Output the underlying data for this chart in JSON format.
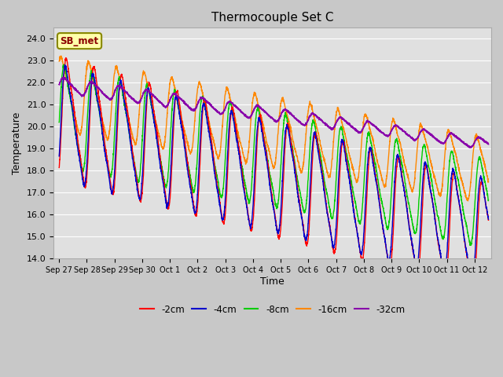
{
  "title": "Thermocouple Set C",
  "xlabel": "Time",
  "ylabel": "Temperature",
  "ylim": [
    14.0,
    24.5
  ],
  "yticks": [
    14.0,
    15.0,
    16.0,
    17.0,
    18.0,
    19.0,
    20.0,
    21.0,
    22.0,
    23.0,
    24.0
  ],
  "fig_bg_color": "#c8c8c8",
  "plot_bg_color": "#e0e0e0",
  "annotation_text": "SB_met",
  "annotation_bg": "#ffffaa",
  "annotation_border": "#888800",
  "series_colors": {
    "-2cm": "#ff0000",
    "-4cm": "#0000cc",
    "-8cm": "#00cc00",
    "-16cm": "#ff8800",
    "-32cm": "#8800aa"
  },
  "x_labels": [
    "Sep 27",
    "Sep 28",
    "Sep 29",
    "Sep 30",
    "Oct 1",
    "Oct 2",
    "Oct 3",
    "Oct 4",
    "Oct 5",
    "Oct 6",
    "Oct 7",
    "Oct 8",
    "Oct 9",
    "Oct 10",
    "Oct 11",
    "Oct 12"
  ],
  "legend_labels": [
    "-2cm",
    "-4cm",
    "-8cm",
    "-16cm",
    "-32cm"
  ]
}
